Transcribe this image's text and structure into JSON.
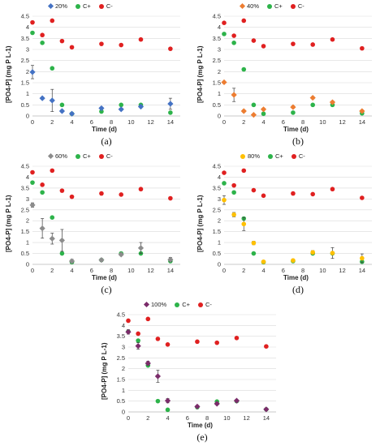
{
  "chart_data": [
    {
      "type": "scatter",
      "panel_label": "(a)",
      "xlabel": "Time (d)",
      "ylabel": "[PO4-P] (mg P L-1)",
      "xlim": [
        0,
        15
      ],
      "ylim": [
        0,
        4.5
      ],
      "xticks": [
        "0",
        "2",
        "4",
        "6",
        "8",
        "10",
        "12",
        "14"
      ],
      "yticks": [
        "0",
        "0.5",
        "1",
        "1.5",
        "2",
        "2.5",
        "3",
        "3.5",
        "4",
        "4.5"
      ],
      "legend_position": "top-center",
      "series": [
        {
          "name": "20%",
          "color": "#4472c4",
          "marker": "diamond",
          "x": [
            0,
            1,
            2,
            3,
            4,
            7,
            9,
            11,
            14
          ],
          "y": [
            1.98,
            0.8,
            0.7,
            0.22,
            0.1,
            0.35,
            0.3,
            0.42,
            0.55
          ],
          "err": [
            0.3,
            0.05,
            0.5,
            0.05,
            0.05,
            0.05,
            0.05,
            0.05,
            0.25
          ]
        },
        {
          "name": "C+",
          "color": "#2db34a",
          "marker": "circle",
          "x": [
            0,
            1,
            2,
            3,
            4,
            7,
            9,
            11,
            14
          ],
          "y": [
            3.75,
            3.3,
            2.15,
            0.5,
            0.1,
            0.2,
            0.5,
            0.5,
            0.15
          ],
          "err": [
            0,
            0,
            0,
            0,
            0,
            0,
            0,
            0,
            0
          ]
        },
        {
          "name": "C-",
          "color": "#e02020",
          "marker": "circle",
          "x": [
            0,
            1,
            2,
            3,
            4,
            7,
            9,
            11,
            14
          ],
          "y": [
            4.22,
            3.65,
            4.3,
            3.38,
            3.1,
            3.25,
            3.2,
            3.45,
            3.03
          ],
          "err": [
            0.06,
            0.03,
            0.04,
            0.04,
            0.03,
            0.03,
            0.03,
            0.03,
            0.06
          ]
        }
      ]
    },
    {
      "type": "scatter",
      "panel_label": "(b)",
      "xlabel": "Time (d)",
      "ylabel": "[PO4-P] (mg P L-1)",
      "xlim": [
        0,
        15
      ],
      "ylim": [
        0,
        4.5
      ],
      "xticks": [
        "0",
        "2",
        "4",
        "6",
        "8",
        "10",
        "12",
        "14"
      ],
      "yticks": [
        "0",
        "0.5",
        "1",
        "1.5",
        "2",
        "2.5",
        "3",
        "3.5",
        "4",
        "4.5"
      ],
      "legend_position": "top-center",
      "series": [
        {
          "name": "40%",
          "color": "#ed7d31",
          "marker": "diamond",
          "x": [
            0,
            1,
            2,
            3,
            4,
            7,
            9,
            11,
            14
          ],
          "y": [
            1.52,
            0.95,
            0.22,
            0.05,
            0.3,
            0.4,
            0.82,
            0.62,
            0.22
          ],
          "err": [
            0.02,
            0.3,
            0.05,
            0.03,
            0.05,
            0.05,
            0.05,
            0.05,
            0.05
          ]
        },
        {
          "name": "C+",
          "color": "#2db34a",
          "marker": "circle",
          "x": [
            0,
            1,
            2,
            3,
            4,
            7,
            9,
            11,
            14
          ],
          "y": [
            3.7,
            3.3,
            2.1,
            0.5,
            0.1,
            0.15,
            0.5,
            0.5,
            0.12
          ],
          "err": [
            0,
            0,
            0,
            0,
            0,
            0,
            0,
            0,
            0
          ]
        },
        {
          "name": "C-",
          "color": "#e02020",
          "marker": "circle",
          "x": [
            0,
            1,
            2,
            3,
            4,
            7,
            9,
            11,
            14
          ],
          "y": [
            4.2,
            3.62,
            4.3,
            3.4,
            3.15,
            3.25,
            3.22,
            3.45,
            3.05
          ],
          "err": [
            0.05,
            0.03,
            0.04,
            0.04,
            0.03,
            0.03,
            0.03,
            0.03,
            0.06
          ]
        }
      ]
    },
    {
      "type": "scatter",
      "panel_label": "(c)",
      "xlabel": "Time (d)",
      "ylabel": "[PO4-P] (mg P L-1)",
      "xlim": [
        0,
        15
      ],
      "ylim": [
        0,
        4.5
      ],
      "xticks": [
        "0",
        "2",
        "4",
        "6",
        "8",
        "10",
        "12",
        "14"
      ],
      "yticks": [
        "0",
        "0.5",
        "1",
        "1.5",
        "2",
        "2.5",
        "3",
        "3.5",
        "4",
        "4.5"
      ],
      "legend_position": "top-center",
      "series": [
        {
          "name": "60%",
          "color": "#8c8c8c",
          "marker": "diamond",
          "x": [
            0,
            1,
            2,
            3,
            4,
            7,
            9,
            11,
            14
          ],
          "y": [
            2.72,
            1.65,
            1.18,
            1.1,
            0.15,
            0.2,
            0.45,
            0.75,
            0.22
          ],
          "err": [
            0.1,
            0.45,
            0.25,
            0.5,
            0.08,
            0.05,
            0.05,
            0.25,
            0.1
          ]
        },
        {
          "name": "C+",
          "color": "#2db34a",
          "marker": "circle",
          "x": [
            0,
            1,
            2,
            3,
            4,
            7,
            9,
            11,
            14
          ],
          "y": [
            3.75,
            3.3,
            2.15,
            0.5,
            0.1,
            0.2,
            0.5,
            0.5,
            0.15
          ],
          "err": [
            0,
            0,
            0,
            0,
            0,
            0,
            0,
            0,
            0
          ]
        },
        {
          "name": "C-",
          "color": "#e02020",
          "marker": "circle",
          "x": [
            0,
            1,
            2,
            3,
            4,
            7,
            9,
            11,
            14
          ],
          "y": [
            4.22,
            3.65,
            4.3,
            3.38,
            3.1,
            3.25,
            3.2,
            3.45,
            3.03
          ],
          "err": [
            0.06,
            0.03,
            0.04,
            0.04,
            0.03,
            0.03,
            0.03,
            0.03,
            0.06
          ]
        }
      ]
    },
    {
      "type": "scatter",
      "panel_label": "(d)",
      "xlabel": "Time (d)",
      "ylabel": "[PO4-P] (mg P L-1)",
      "xlim": [
        0,
        15
      ],
      "ylim": [
        0,
        4.5
      ],
      "xticks": [
        "0",
        "2",
        "4",
        "6",
        "8",
        "10",
        "12",
        "14"
      ],
      "yticks": [
        "0",
        "0.5",
        "1",
        "1.5",
        "2",
        "2.5",
        "3",
        "3.5",
        "4",
        "4.5"
      ],
      "legend_position": "top-center",
      "series": [
        {
          "name": "80%",
          "color": "#ffc000",
          "marker": "circle",
          "x": [
            0,
            1,
            2,
            3,
            4,
            7,
            9,
            11,
            14
          ],
          "y": [
            2.95,
            2.28,
            1.85,
            0.98,
            0.12,
            0.18,
            0.55,
            0.52,
            0.28
          ],
          "err": [
            0.2,
            0.1,
            0.3,
            0.08,
            0.05,
            0.05,
            0.08,
            0.25,
            0.2
          ]
        },
        {
          "name": "C+",
          "color": "#2db34a",
          "marker": "circle",
          "x": [
            0,
            1,
            2,
            3,
            4,
            7,
            9,
            11,
            14
          ],
          "y": [
            3.72,
            3.3,
            2.1,
            0.5,
            0.1,
            0.15,
            0.5,
            0.5,
            0.12
          ],
          "err": [
            0,
            0,
            0,
            0,
            0,
            0,
            0,
            0,
            0
          ]
        },
        {
          "name": "C-",
          "color": "#e02020",
          "marker": "circle",
          "x": [
            0,
            1,
            2,
            3,
            4,
            7,
            9,
            11,
            14
          ],
          "y": [
            4.2,
            3.62,
            4.3,
            3.4,
            3.15,
            3.25,
            3.22,
            3.45,
            3.05
          ],
          "err": [
            0.05,
            0.03,
            0.04,
            0.04,
            0.03,
            0.03,
            0.03,
            0.03,
            0.06
          ]
        }
      ]
    },
    {
      "type": "scatter",
      "panel_label": "(e)",
      "xlabel": "Time (d)",
      "ylabel": "[PO4-P] (mg P L-1)",
      "xlim": [
        0,
        15
      ],
      "ylim": [
        0,
        4.5
      ],
      "xticks": [
        "0",
        "2",
        "4",
        "6",
        "8",
        "10",
        "12",
        "14"
      ],
      "yticks": [
        "0",
        "0.5",
        "1",
        "1.5",
        "2",
        "2.5",
        "3",
        "3.5",
        "4",
        "4.5"
      ],
      "legend_position": "top-center",
      "series": [
        {
          "name": "100%",
          "color": "#7b2c6a",
          "marker": "diamond",
          "x": [
            0,
            1,
            2,
            3,
            4,
            7,
            9,
            11,
            14
          ],
          "y": [
            3.7,
            3.05,
            2.25,
            1.65,
            0.52,
            0.25,
            0.38,
            0.52,
            0.12
          ],
          "err": [
            0.1,
            0.15,
            0.1,
            0.28,
            0.1,
            0.05,
            0.05,
            0.05,
            0.03
          ]
        },
        {
          "name": "C+",
          "color": "#2db34a",
          "marker": "circle",
          "x": [
            0,
            1,
            2,
            3,
            4,
            7,
            9,
            11,
            14
          ],
          "y": [
            3.72,
            3.3,
            2.15,
            0.5,
            0.1,
            0.22,
            0.48,
            0.5,
            0.12
          ],
          "err": [
            0,
            0,
            0,
            0,
            0,
            0,
            0,
            0,
            0
          ]
        },
        {
          "name": "C-",
          "color": "#e02020",
          "marker": "circle",
          "x": [
            0,
            1,
            2,
            3,
            4,
            7,
            9,
            11,
            14
          ],
          "y": [
            4.22,
            3.62,
            4.3,
            3.38,
            3.12,
            3.25,
            3.2,
            3.42,
            3.03
          ],
          "err": [
            0.06,
            0.03,
            0.04,
            0.04,
            0.03,
            0.03,
            0.03,
            0.03,
            0.06
          ]
        }
      ]
    }
  ]
}
